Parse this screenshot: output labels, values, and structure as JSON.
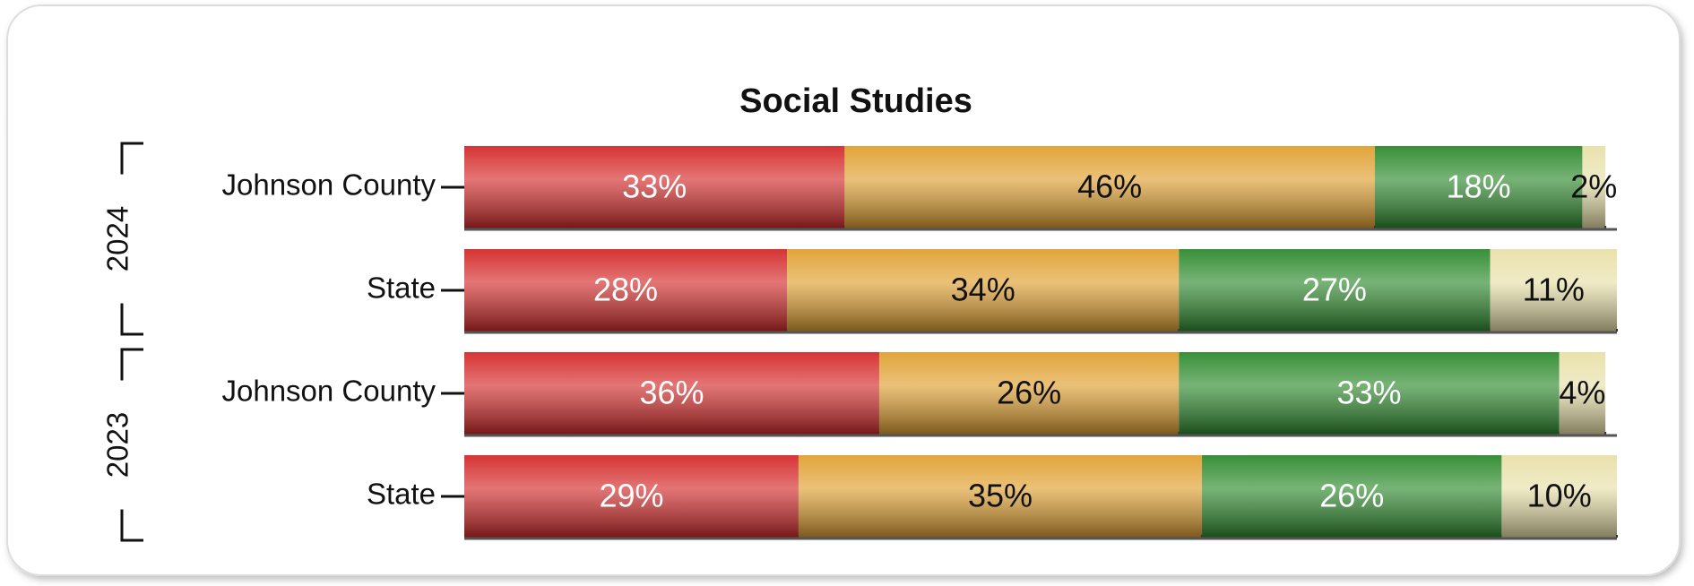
{
  "chart_data": {
    "type": "bar",
    "orientation": "horizontal",
    "stacked": true,
    "title": "Social Studies",
    "categories": [
      "Johnson County",
      "State",
      "Johnson County",
      "State"
    ],
    "groups": [
      "2024",
      "2023"
    ],
    "xlim": [
      0,
      100
    ],
    "series": [
      {
        "color": "#d42a2a",
        "label_color": "#ffffff",
        "values": [
          33,
          28,
          36,
          29
        ],
        "value_labels": [
          "33%",
          "28%",
          "36%",
          "29%"
        ]
      },
      {
        "color": "#e0a030",
        "label_color": "#111111",
        "values": [
          46,
          34,
          26,
          35
        ],
        "value_labels": [
          "46%",
          "34%",
          "26%",
          "35%"
        ]
      },
      {
        "color": "#2e8a2e",
        "label_color": "#ffffff",
        "values": [
          18,
          27,
          33,
          26
        ],
        "value_labels": [
          "18%",
          "27%",
          "33%",
          "26%"
        ]
      },
      {
        "color": "#e8e0a8",
        "label_color": "#111111",
        "values": [
          2,
          11,
          4,
          10
        ],
        "value_labels": [
          "2%",
          "11%",
          "4%",
          "10%"
        ]
      }
    ]
  }
}
